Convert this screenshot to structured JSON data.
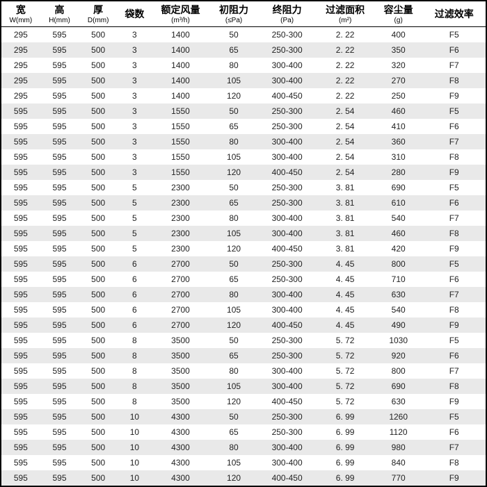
{
  "table": {
    "background_color": "#ffffff",
    "alt_row_color": "#e9e9e9",
    "border_color": "#000000",
    "header_fontsize": 14,
    "body_fontsize": 12,
    "columns": [
      {
        "label": "宽",
        "sub": "W(mm)",
        "width_pct": 8
      },
      {
        "label": "高",
        "sub": "H(mm)",
        "width_pct": 8
      },
      {
        "label": "厚",
        "sub": "D(mm)",
        "width_pct": 8
      },
      {
        "label": "袋数",
        "sub": "",
        "width_pct": 7
      },
      {
        "label": "额定风量",
        "sub": "(m³/h)",
        "width_pct": 12
      },
      {
        "label": "初阻力",
        "sub": "(≤Pa)",
        "width_pct": 10
      },
      {
        "label": "终阻力",
        "sub": "(Pa)",
        "width_pct": 12
      },
      {
        "label": "过滤面积",
        "sub": "(m²)",
        "width_pct": 12
      },
      {
        "label": "容尘量",
        "sub": "(g)",
        "width_pct": 10
      },
      {
        "label": "过滤效率",
        "sub": "",
        "width_pct": 13
      }
    ],
    "rows": [
      [
        "295",
        "595",
        "500",
        "3",
        "1400",
        "50",
        "250-300",
        "2. 22",
        "400",
        "F5"
      ],
      [
        "295",
        "595",
        "500",
        "3",
        "1400",
        "65",
        "250-300",
        "2. 22",
        "350",
        "F6"
      ],
      [
        "295",
        "595",
        "500",
        "3",
        "1400",
        "80",
        "300-400",
        "2. 22",
        "320",
        "F7"
      ],
      [
        "295",
        "595",
        "500",
        "3",
        "1400",
        "105",
        "300-400",
        "2. 22",
        "270",
        "F8"
      ],
      [
        "295",
        "595",
        "500",
        "3",
        "1400",
        "120",
        "400-450",
        "2. 22",
        "250",
        "F9"
      ],
      [
        "595",
        "595",
        "500",
        "3",
        "1550",
        "50",
        "250-300",
        "2. 54",
        "460",
        "F5"
      ],
      [
        "595",
        "595",
        "500",
        "3",
        "1550",
        "65",
        "250-300",
        "2. 54",
        "410",
        "F6"
      ],
      [
        "595",
        "595",
        "500",
        "3",
        "1550",
        "80",
        "300-400",
        "2. 54",
        "360",
        "F7"
      ],
      [
        "595",
        "595",
        "500",
        "3",
        "1550",
        "105",
        "300-400",
        "2. 54",
        "310",
        "F8"
      ],
      [
        "595",
        "595",
        "500",
        "3",
        "1550",
        "120",
        "400-450",
        "2. 54",
        "280",
        "F9"
      ],
      [
        "595",
        "595",
        "500",
        "5",
        "2300",
        "50",
        "250-300",
        "3. 81",
        "690",
        "F5"
      ],
      [
        "595",
        "595",
        "500",
        "5",
        "2300",
        "65",
        "250-300",
        "3. 81",
        "610",
        "F6"
      ],
      [
        "595",
        "595",
        "500",
        "5",
        "2300",
        "80",
        "300-400",
        "3. 81",
        "540",
        "F7"
      ],
      [
        "595",
        "595",
        "500",
        "5",
        "2300",
        "105",
        "300-400",
        "3. 81",
        "460",
        "F8"
      ],
      [
        "595",
        "595",
        "500",
        "5",
        "2300",
        "120",
        "400-450",
        "3. 81",
        "420",
        "F9"
      ],
      [
        "595",
        "595",
        "500",
        "6",
        "2700",
        "50",
        "250-300",
        "4. 45",
        "800",
        "F5"
      ],
      [
        "595",
        "595",
        "500",
        "6",
        "2700",
        "65",
        "250-300",
        "4. 45",
        "710",
        "F6"
      ],
      [
        "595",
        "595",
        "500",
        "6",
        "2700",
        "80",
        "300-400",
        "4. 45",
        "630",
        "F7"
      ],
      [
        "595",
        "595",
        "500",
        "6",
        "2700",
        "105",
        "300-400",
        "4. 45",
        "540",
        "F8"
      ],
      [
        "595",
        "595",
        "500",
        "6",
        "2700",
        "120",
        "400-450",
        "4. 45",
        "490",
        "F9"
      ],
      [
        "595",
        "595",
        "500",
        "8",
        "3500",
        "50",
        "250-300",
        "5. 72",
        "1030",
        "F5"
      ],
      [
        "595",
        "595",
        "500",
        "8",
        "3500",
        "65",
        "250-300",
        "5. 72",
        "920",
        "F6"
      ],
      [
        "595",
        "595",
        "500",
        "8",
        "3500",
        "80",
        "300-400",
        "5. 72",
        "800",
        "F7"
      ],
      [
        "595",
        "595",
        "500",
        "8",
        "3500",
        "105",
        "300-400",
        "5. 72",
        "690",
        "F8"
      ],
      [
        "595",
        "595",
        "500",
        "8",
        "3500",
        "120",
        "400-450",
        "5. 72",
        "630",
        "F9"
      ],
      [
        "595",
        "595",
        "500",
        "10",
        "4300",
        "50",
        "250-300",
        "6. 99",
        "1260",
        "F5"
      ],
      [
        "595",
        "595",
        "500",
        "10",
        "4300",
        "65",
        "250-300",
        "6. 99",
        "1120",
        "F6"
      ],
      [
        "595",
        "595",
        "500",
        "10",
        "4300",
        "80",
        "300-400",
        "6. 99",
        "980",
        "F7"
      ],
      [
        "595",
        "595",
        "500",
        "10",
        "4300",
        "105",
        "300-400",
        "6. 99",
        "840",
        "F8"
      ],
      [
        "595",
        "595",
        "500",
        "10",
        "4300",
        "120",
        "400-450",
        "6. 99",
        "770",
        "F9"
      ]
    ]
  }
}
